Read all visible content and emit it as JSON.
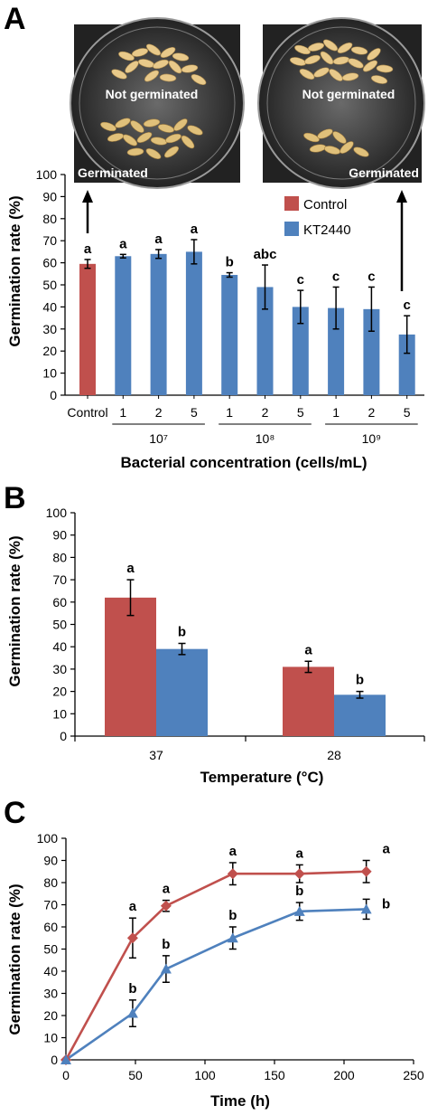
{
  "colors": {
    "control": "#c0504d",
    "treated": "#4f81bd",
    "axis": "#000000"
  },
  "chart_data": [
    {
      "panel_label": "A",
      "type": "bar",
      "ylabel": "Germination rate (%)",
      "xlabel": "Bacterial concentration (cells/mL)",
      "ylim": [
        0,
        100
      ],
      "yticks": [
        0,
        10,
        20,
        30,
        40,
        50,
        60,
        70,
        80,
        90,
        100
      ],
      "grid": false,
      "legend": {
        "position": "top-right",
        "entries": [
          "Control",
          "KT2440"
        ]
      },
      "categories": [
        "Control",
        "1",
        "2",
        "5",
        "1",
        "2",
        "5",
        "1",
        "2",
        "5"
      ],
      "group_labels": [
        "10⁷",
        "10⁸",
        "10⁹"
      ],
      "photo_labels": {
        "top": "Not germinated",
        "bottom": "Germinated"
      },
      "series": [
        {
          "name": "Control",
          "values": [
            59.5,
            null,
            null,
            null,
            null,
            null,
            null,
            null,
            null,
            null
          ],
          "errors": [
            2,
            null,
            null,
            null,
            null,
            null,
            null,
            null,
            null,
            null
          ]
        },
        {
          "name": "KT2440",
          "values": [
            null,
            63,
            64,
            65,
            54.5,
            49,
            40,
            39.5,
            39,
            27.5
          ],
          "errors": [
            null,
            0.8,
            2,
            5.5,
            1,
            10,
            7.5,
            9.5,
            10,
            8.5
          ]
        }
      ],
      "letters": [
        "a",
        "a",
        "a",
        "a",
        "b",
        "abc",
        "c",
        "c",
        "c",
        "c"
      ]
    },
    {
      "panel_label": "B",
      "type": "bar",
      "ylabel": "Germination rate (%)",
      "xlabel": "Temperature (°C)",
      "ylim": [
        0,
        100
      ],
      "yticks": [
        0,
        10,
        20,
        30,
        40,
        50,
        60,
        70,
        80,
        90,
        100
      ],
      "grid": false,
      "categories": [
        "37",
        "28"
      ],
      "series": [
        {
          "name": "Control",
          "values": [
            62,
            31
          ],
          "errors": [
            8,
            2.5
          ],
          "letters": [
            "a",
            "a"
          ]
        },
        {
          "name": "KT2440",
          "values": [
            39,
            18.5
          ],
          "errors": [
            2.5,
            1.5
          ],
          "letters": [
            "b",
            "b"
          ]
        }
      ]
    },
    {
      "panel_label": "C",
      "type": "line",
      "ylabel": "Germination rate (%)",
      "xlabel": "Time (h)",
      "xlim": [
        0,
        250
      ],
      "xticks": [
        0,
        50,
        100,
        150,
        200,
        250
      ],
      "ylim": [
        0,
        100
      ],
      "yticks": [
        0,
        10,
        20,
        30,
        40,
        50,
        60,
        70,
        80,
        90,
        100
      ],
      "grid": false,
      "x": [
        0,
        48,
        72,
        120,
        168,
        216
      ],
      "series": [
        {
          "name": "Control",
          "values": [
            0,
            55,
            69.5,
            84,
            84,
            85
          ],
          "errors": [
            0,
            9,
            2.5,
            5,
            4,
            5
          ],
          "letters": [
            "",
            "a",
            "a",
            "a",
            "a",
            "a"
          ]
        },
        {
          "name": "KT2440",
          "values": [
            0,
            21,
            41,
            55,
            67,
            68
          ],
          "errors": [
            0,
            6,
            6,
            5,
            4,
            4.5
          ],
          "letters": [
            "",
            "b",
            "b",
            "b",
            "b",
            "b"
          ]
        }
      ]
    }
  ]
}
